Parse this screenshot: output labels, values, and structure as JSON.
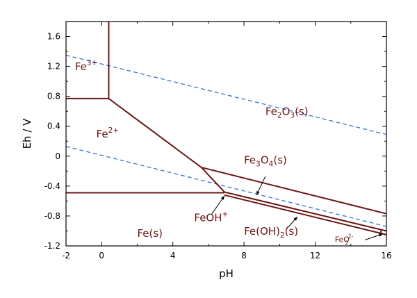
{
  "chart_data": {
    "type": "line",
    "xlabel": "pH",
    "ylabel": "Eh / V",
    "xlim": [
      -2,
      16
    ],
    "ylim": [
      -1.2,
      1.8
    ],
    "xticks": [
      "-2",
      "0",
      "4",
      "8",
      "12",
      "16"
    ],
    "yticks": [
      "1.6",
      "1.2",
      "0.8",
      "0.4",
      "0",
      "-0.4",
      "-0.8",
      "-1.2"
    ],
    "colors": {
      "boundary": "#6b1515",
      "water": "#3a6fd8"
    },
    "boundaries": [
      {
        "x": [
          0.4,
          0.4
        ],
        "y": [
          0.77,
          1.8
        ]
      },
      {
        "x": [
          -2,
          0.4
        ],
        "y": [
          0.77,
          0.77
        ]
      },
      {
        "x": [
          0.4,
          5.6,
          6.9
        ],
        "y": [
          0.77,
          -0.15,
          -0.48
        ]
      },
      {
        "x": [
          -2,
          6.9
        ],
        "y": [
          -0.49,
          -0.49
        ]
      },
      {
        "x": [
          5.6,
          16
        ],
        "y": [
          -0.15,
          -0.77
        ]
      },
      {
        "x": [
          6.9,
          16
        ],
        "y": [
          -0.48,
          -1.0
        ]
      },
      {
        "x": [
          6.9,
          16
        ],
        "y": [
          -0.52,
          -1.05
        ]
      },
      {
        "x": [
          15.7,
          15.7
        ],
        "y": [
          -0.99,
          -1.04
        ]
      }
    ],
    "water_lines": [
      {
        "x": [
          -2,
          16
        ],
        "y": [
          1.35,
          0.29
        ]
      },
      {
        "x": [
          -2,
          16
        ],
        "y": [
          0.13,
          -0.94
        ]
      }
    ],
    "regions": [
      {
        "id": "fe3",
        "base": "Fe",
        "sup": "3+",
        "x": -1.5,
        "y": 1.15
      },
      {
        "id": "fe2",
        "base": "Fe",
        "sup": "2+",
        "x": -0.3,
        "y": 0.25
      },
      {
        "id": "fe2o3",
        "parts": [
          [
            "Fe",
            ""
          ],
          [
            "2",
            "sub"
          ],
          [
            "O",
            ""
          ],
          [
            "3",
            "sub"
          ],
          [
            "(s)",
            ""
          ]
        ],
        "x": 9.2,
        "y": 0.55
      },
      {
        "id": "fe3o4",
        "parts": [
          [
            "Fe",
            ""
          ],
          [
            "3",
            "sub"
          ],
          [
            "O",
            ""
          ],
          [
            "4",
            "sub"
          ],
          [
            "(s)",
            ""
          ]
        ],
        "x": 8.0,
        "y": -0.1
      },
      {
        "id": "feoh",
        "parts": [
          [
            "FeOH",
            ""
          ],
          [
            "+",
            "sup"
          ]
        ],
        "x": 5.2,
        "y": -0.87
      },
      {
        "id": "feoh2",
        "parts": [
          [
            "Fe(OH)",
            ""
          ],
          [
            "2",
            "sub"
          ],
          [
            "(s)",
            ""
          ]
        ],
        "x": 8.0,
        "y": -1.05
      },
      {
        "id": "fes",
        "parts": [
          [
            "Fe(s)",
            ""
          ]
        ],
        "x": 2.0,
        "y": -1.08
      },
      {
        "id": "feo2",
        "parts": [
          [
            "FeO",
            ""
          ],
          [
            "2-",
            "supsub"
          ]
        ],
        "x": 13.1,
        "y": -1.15,
        "small": true
      }
    ],
    "arrows": [
      {
        "x": [
          9.2,
          8.7
        ],
        "y": [
          -0.27,
          -0.52
        ]
      },
      {
        "x": [
          6.2,
          6.9
        ],
        "y": [
          -0.77,
          -0.53
        ]
      },
      {
        "x": [
          10.4,
          11.0
        ],
        "y": [
          -0.97,
          -0.81
        ]
      },
      {
        "x": [
          14.8,
          15.8
        ],
        "y": [
          -1.12,
          -1.04
        ]
      }
    ]
  }
}
